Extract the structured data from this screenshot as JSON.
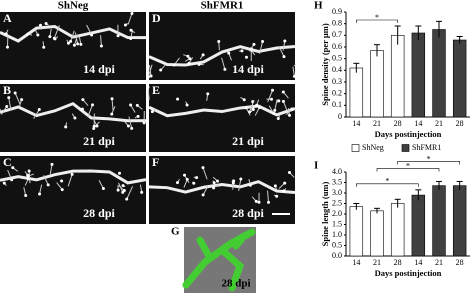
{
  "figure": {
    "columns": [
      "ShNeg",
      "ShFMR1"
    ],
    "panels": [
      {
        "letter": "A",
        "label": "14 dpi"
      },
      {
        "letter": "D",
        "label": "14 dpi"
      },
      {
        "letter": "B",
        "label": "21 dpi"
      },
      {
        "letter": "E",
        "label": "21 dpi"
      },
      {
        "letter": "C",
        "label": "28 dpi"
      },
      {
        "letter": "F",
        "label": "28 dpi"
      }
    ],
    "panel_g": {
      "letter": "G",
      "label": "28 dpi"
    }
  },
  "chart_data": [
    {
      "type": "bar",
      "panel_letter": "H",
      "y_label": "Spine density (per µm)",
      "x_label": "Days postinjection",
      "categories": [
        "14",
        "21",
        "28",
        "14",
        "21",
        "28"
      ],
      "series": [
        {
          "name": "ShNeg",
          "color": "#ffffff",
          "values": [
            0.42,
            0.57,
            0.7,
            null,
            null,
            null
          ],
          "errors": [
            0.04,
            0.05,
            0.08,
            null,
            null,
            null
          ]
        },
        {
          "name": "ShFMR1",
          "color": "#404040",
          "values": [
            null,
            null,
            null,
            0.72,
            0.75,
            0.66
          ],
          "errors": [
            null,
            null,
            null,
            0.06,
            0.07,
            0.03
          ]
        }
      ],
      "ylim": [
        0,
        0.9
      ],
      "yticks": [
        0,
        0.1,
        0.2,
        0.3,
        0.4,
        0.5,
        0.6,
        0.7,
        0.8,
        0.9
      ],
      "significance": [
        {
          "text": "*",
          "between": [
            0,
            2
          ]
        }
      ],
      "legend": "bottom",
      "grid": false
    },
    {
      "type": "bar",
      "panel_letter": "I",
      "y_label": "Spine length (um)",
      "x_label": "Days postinjection",
      "categories": [
        "14",
        "21",
        "28",
        "14",
        "21",
        "28"
      ],
      "series": [
        {
          "name": "ShNeg",
          "color": "#ffffff",
          "values": [
            2.35,
            2.15,
            2.5,
            null,
            null,
            null
          ],
          "errors": [
            0.15,
            0.12,
            0.2,
            null,
            null,
            null
          ]
        },
        {
          "name": "ShFMR1",
          "color": "#404040",
          "values": [
            null,
            null,
            null,
            2.9,
            3.35,
            3.35
          ],
          "errors": [
            null,
            null,
            null,
            0.25,
            0.2,
            0.2
          ]
        }
      ],
      "ylim": [
        0,
        4
      ],
      "yticks": [
        {
          "value": 0,
          "label": "0.0"
        },
        0.5,
        {
          "value": 1,
          "label": "1.0"
        },
        1.5,
        {
          "value": 2,
          "label": "2.0"
        },
        2.5,
        {
          "value": 3,
          "label": "3.0"
        },
        3.5,
        {
          "value": 4,
          "label": "4.0"
        }
      ],
      "significance": [
        {
          "text": "*",
          "between": [
            0,
            3
          ]
        },
        {
          "text": "*",
          "between": [
            1,
            4
          ]
        },
        {
          "text": "*",
          "between": [
            2,
            5
          ]
        }
      ],
      "grid": false
    }
  ]
}
